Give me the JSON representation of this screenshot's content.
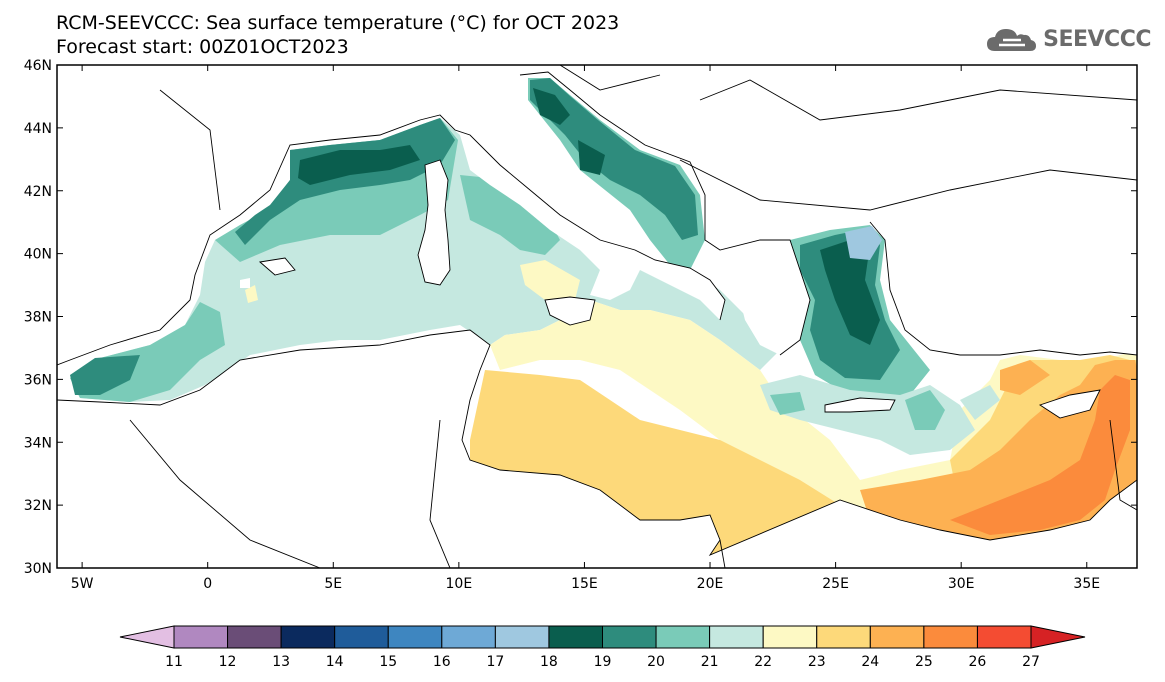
{
  "header": {
    "title_line1": "RCM-SEEVCCC: Sea surface temperature (°C) for OCT 2023",
    "title_line2": "Forecast start: 00Z01OCT2023"
  },
  "logo": {
    "text": "SEEVCCC",
    "icon": "cloud-icon",
    "color": "#6b6b6b"
  },
  "map": {
    "lon_range": [
      -6,
      37
    ],
    "lat_range": [
      30,
      46
    ],
    "lat_ticks": [
      "30N",
      "32N",
      "34N",
      "36N",
      "38N",
      "40N",
      "42N",
      "44N",
      "46N"
    ],
    "lon_ticks": [
      "5W",
      "0",
      "5E",
      "10E",
      "15E",
      "20E",
      "25E",
      "30E",
      "35E"
    ],
    "lat_tick_values": [
      30,
      32,
      34,
      36,
      38,
      40,
      42,
      44,
      46
    ],
    "lon_tick_values": [
      -5,
      0,
      5,
      10,
      15,
      20,
      25,
      30,
      35
    ]
  },
  "colorbar": {
    "labels": [
      "11",
      "12",
      "13",
      "14",
      "15",
      "16",
      "17",
      "18",
      "19",
      "20",
      "21",
      "22",
      "23",
      "24",
      "25",
      "26",
      "27"
    ],
    "colors": [
      "#e3bfe3",
      "#b088c0",
      "#6a4d77",
      "#0b2a5e",
      "#1f5c9a",
      "#3e86c0",
      "#6ea9d6",
      "#9fc8e0",
      "#0a5e4e",
      "#2e8c7d",
      "#7acbb8",
      "#c5e8e0",
      "#fdf9c4",
      "#fdd97a",
      "#fdb152",
      "#fb8b3c",
      "#f44c32",
      "#d62224"
    ]
  }
}
